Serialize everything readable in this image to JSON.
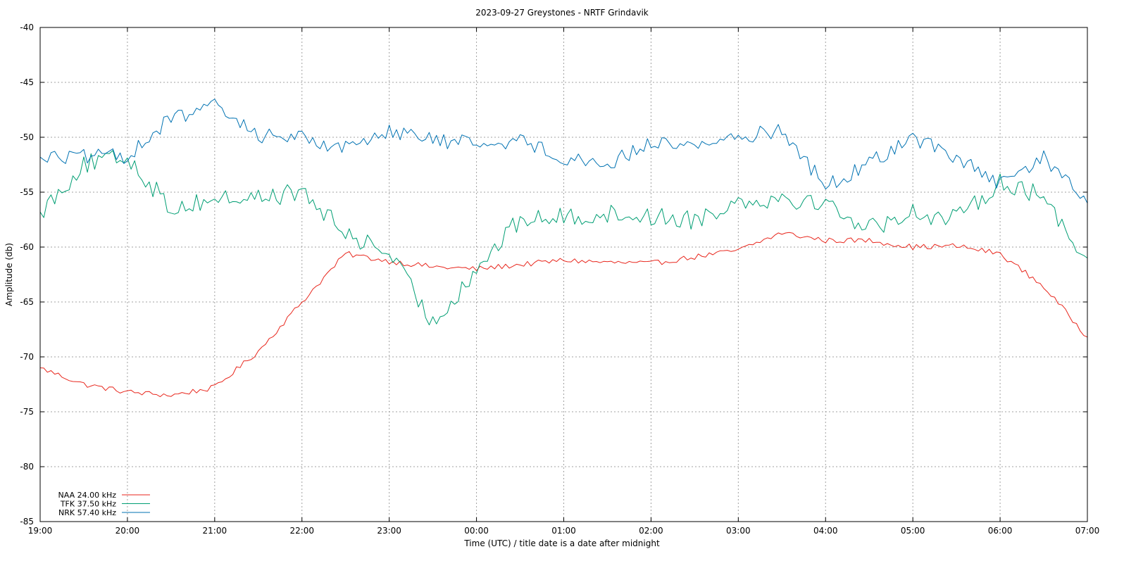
{
  "chart_data": {
    "type": "line",
    "title": "2023-09-27 Greystones - NRTF Grindavik",
    "xlabel": "Time (UTC) / title date is a date after midnight",
    "ylabel": "Amplitude (db)",
    "xlim": [
      "19:00",
      "07:00"
    ],
    "ylim": [
      -85,
      -40
    ],
    "x_ticks": [
      "19:00",
      "20:00",
      "21:00",
      "22:00",
      "23:00",
      "00:00",
      "01:00",
      "02:00",
      "03:00",
      "04:00",
      "05:00",
      "06:00",
      "07:00"
    ],
    "y_ticks": [
      -40,
      -45,
      -50,
      -55,
      -60,
      -65,
      -70,
      -75,
      -80,
      -85
    ],
    "grid": true,
    "legend_position": "bottom-left",
    "x": [
      "19:00",
      "19:30",
      "20:00",
      "20:30",
      "21:00",
      "21:30",
      "22:00",
      "22:30",
      "23:00",
      "23:30",
      "00:00",
      "00:30",
      "01:00",
      "01:30",
      "02:00",
      "02:30",
      "03:00",
      "03:30",
      "04:00",
      "04:30",
      "05:00",
      "05:30",
      "06:00",
      "06:30",
      "07:00"
    ],
    "series": [
      {
        "name": "NAA 24.00 kHz",
        "color": "#e8261c",
        "values": [
          -71.0,
          -72.5,
          -73.2,
          -73.5,
          -72.8,
          -69.5,
          -65.0,
          -60.6,
          -61.3,
          -61.8,
          -62.0,
          -61.6,
          -61.2,
          -61.4,
          -61.5,
          -60.9,
          -60.3,
          -58.7,
          -59.4,
          -59.4,
          -60.0,
          -59.9,
          -60.6,
          -63.6,
          -68.2
        ]
      },
      {
        "name": "TFK 37.50 kHz",
        "color": "#009e73",
        "values": [
          -56.8,
          -52.5,
          -51.8,
          -56.5,
          -55.6,
          -55.5,
          -55.0,
          -58.8,
          -60.5,
          -67.0,
          -62.0,
          -57.5,
          -57.3,
          -57.0,
          -57.2,
          -57.5,
          -55.8,
          -55.5,
          -56.0,
          -58.3,
          -56.8,
          -57.5,
          -54.0,
          -55.5,
          -61.0
        ]
      },
      {
        "name": "NRK 57.40 kHz",
        "color": "#0072b2",
        "values": [
          -51.8,
          -51.8,
          -51.7,
          -48.3,
          -47.2,
          -49.8,
          -50.0,
          -51.0,
          -49.3,
          -50.3,
          -50.5,
          -50.3,
          -51.8,
          -52.5,
          -50.5,
          -50.7,
          -50.0,
          -49.3,
          -54.5,
          -52.4,
          -50.0,
          -51.8,
          -54.4,
          -51.8,
          -56.0
        ]
      }
    ]
  }
}
